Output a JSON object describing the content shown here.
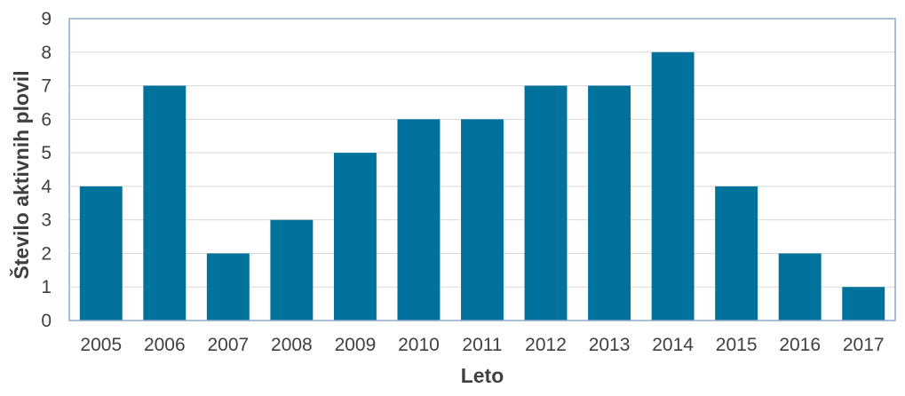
{
  "chart_data": {
    "type": "bar",
    "categories": [
      "2005",
      "2006",
      "2007",
      "2008",
      "2009",
      "2010",
      "2011",
      "2012",
      "2013",
      "2014",
      "2015",
      "2016",
      "2017"
    ],
    "values": [
      4,
      7,
      2,
      3,
      5,
      6,
      6,
      7,
      7,
      8,
      4,
      2,
      1
    ],
    "xlabel": "Leto",
    "ylabel": "Število aktivnih plovil",
    "ylim": [
      0,
      9
    ],
    "yticks": [
      0,
      1,
      2,
      3,
      4,
      5,
      6,
      7,
      8,
      9
    ],
    "grid": true,
    "legend": "none",
    "colors": {
      "bar": "#00729b",
      "grid": "#d9d9d9",
      "frame": "#8faac8",
      "text": "#404040"
    }
  }
}
